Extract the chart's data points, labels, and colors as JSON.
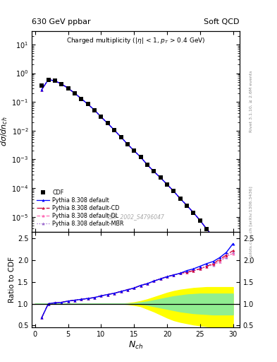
{
  "title_left": "630 GeV ppbar",
  "title_right": "Soft QCD",
  "watermark": "CDF_2002_S4796047",
  "ylim_main": [
    3e-06,
    30
  ],
  "xlim": [
    -0.5,
    31
  ],
  "ylim_ratio": [
    0.45,
    2.65
  ],
  "yticks_ratio": [
    0.5,
    1.0,
    1.5,
    2.0,
    2.5
  ],
  "xticks": [
    0,
    5,
    10,
    15,
    20,
    25,
    30
  ],
  "cdf_nch": [
    1,
    2,
    3,
    4,
    5,
    6,
    7,
    8,
    9,
    10,
    11,
    12,
    13,
    14,
    15,
    16,
    17,
    18,
    19,
    20,
    21,
    22,
    23,
    24,
    25,
    26,
    27,
    28,
    29,
    30
  ],
  "cdf_vals": [
    0.38,
    0.6,
    0.54,
    0.42,
    0.3,
    0.2,
    0.13,
    0.083,
    0.052,
    0.03,
    0.018,
    0.0105,
    0.006,
    0.0034,
    0.002,
    0.0012,
    0.00065,
    0.00038,
    0.00023,
    0.000135,
    7.8e-05,
    4.3e-05,
    2.5e-05,
    1.4e-05,
    7.5e-06,
    3.8e-06,
    2e-06,
    1e-06,
    5e-07,
    3e-07
  ],
  "py_nch": [
    1,
    2,
    3,
    4,
    5,
    6,
    7,
    8,
    9,
    10,
    11,
    12,
    13,
    14,
    15,
    16,
    17,
    18,
    19,
    20,
    21,
    22,
    23,
    24,
    25,
    26,
    27,
    28,
    29,
    30
  ],
  "py_default_vals": [
    0.27,
    0.6,
    0.54,
    0.42,
    0.3,
    0.2,
    0.13,
    0.083,
    0.052,
    0.03,
    0.018,
    0.0105,
    0.006,
    0.0034,
    0.002,
    0.0012,
    0.00065,
    0.00038,
    0.00023,
    0.000135,
    7.8e-05,
    4.3e-05,
    2.5e-05,
    1.4e-05,
    7.5e-06,
    3.8e-06,
    2e-06,
    1e-06,
    5e-07,
    2.8e-07
  ],
  "py_cd_vals": [
    0.27,
    0.6,
    0.54,
    0.42,
    0.3,
    0.2,
    0.13,
    0.083,
    0.052,
    0.03,
    0.018,
    0.0105,
    0.006,
    0.0034,
    0.002,
    0.0012,
    0.00065,
    0.00038,
    0.00023,
    0.000135,
    7.8e-05,
    4.3e-05,
    2.5e-05,
    1.4e-05,
    7.5e-06,
    3.8e-06,
    2e-06,
    1e-06,
    5e-07,
    2.8e-07
  ],
  "py_dl_vals": [
    0.27,
    0.6,
    0.54,
    0.42,
    0.3,
    0.2,
    0.13,
    0.083,
    0.052,
    0.03,
    0.018,
    0.0105,
    0.006,
    0.0034,
    0.002,
    0.0012,
    0.00065,
    0.00038,
    0.00023,
    0.000135,
    7.8e-05,
    4.3e-05,
    2.5e-05,
    1.4e-05,
    7.5e-06,
    3.8e-06,
    2e-06,
    1e-06,
    5e-07,
    2.8e-07
  ],
  "py_mbr_vals": [
    0.27,
    0.6,
    0.54,
    0.42,
    0.3,
    0.2,
    0.13,
    0.083,
    0.052,
    0.03,
    0.018,
    0.0105,
    0.006,
    0.0034,
    0.002,
    0.0012,
    0.00065,
    0.00038,
    0.00023,
    0.000135,
    7.8e-05,
    4.3e-05,
    2.5e-05,
    1.4e-05,
    7.5e-06,
    3.8e-06,
    2e-06,
    1e-06,
    5e-07,
    2.8e-07
  ],
  "ratio_nch": [
    1,
    2,
    3,
    4,
    5,
    6,
    7,
    8,
    9,
    10,
    11,
    12,
    13,
    14,
    15,
    16,
    17,
    18,
    19,
    20,
    21,
    22,
    23,
    24,
    25,
    26,
    27,
    28,
    29,
    30
  ],
  "ratio_default": [
    0.68,
    1.0,
    1.02,
    1.03,
    1.06,
    1.08,
    1.1,
    1.12,
    1.14,
    1.18,
    1.21,
    1.24,
    1.28,
    1.32,
    1.36,
    1.42,
    1.46,
    1.52,
    1.57,
    1.62,
    1.66,
    1.7,
    1.76,
    1.8,
    1.86,
    1.92,
    1.97,
    2.06,
    2.18,
    2.38
  ],
  "ratio_cd": [
    0.68,
    1.0,
    1.02,
    1.03,
    1.06,
    1.08,
    1.1,
    1.12,
    1.14,
    1.18,
    1.21,
    1.24,
    1.28,
    1.32,
    1.36,
    1.42,
    1.46,
    1.52,
    1.57,
    1.62,
    1.66,
    1.7,
    1.72,
    1.76,
    1.8,
    1.86,
    1.92,
    2.02,
    2.12,
    2.22
  ],
  "ratio_dl": [
    0.68,
    1.0,
    1.02,
    1.03,
    1.06,
    1.08,
    1.1,
    1.12,
    1.14,
    1.18,
    1.21,
    1.24,
    1.28,
    1.32,
    1.36,
    1.42,
    1.46,
    1.52,
    1.57,
    1.62,
    1.66,
    1.7,
    1.72,
    1.76,
    1.8,
    1.86,
    1.9,
    1.97,
    2.1,
    2.15
  ],
  "ratio_mbr": [
    0.68,
    1.0,
    1.02,
    1.03,
    1.06,
    1.08,
    1.1,
    1.12,
    1.14,
    1.18,
    1.21,
    1.24,
    1.28,
    1.32,
    1.36,
    1.42,
    1.46,
    1.52,
    1.57,
    1.62,
    1.66,
    1.7,
    1.72,
    1.76,
    1.8,
    1.85,
    1.89,
    1.97,
    2.07,
    2.17
  ],
  "green_x": [
    0,
    1,
    2,
    3,
    4,
    5,
    6,
    7,
    8,
    9,
    10,
    11,
    12,
    13,
    14,
    15,
    16,
    17,
    18,
    19,
    20,
    21,
    22,
    23,
    24,
    25,
    26,
    27,
    28,
    29,
    30
  ],
  "green_lo": [
    1.0,
    1.0,
    1.0,
    1.0,
    1.0,
    1.0,
    1.0,
    1.0,
    1.0,
    1.0,
    1.0,
    1.0,
    1.0,
    1.0,
    1.0,
    1.0,
    0.99,
    0.97,
    0.94,
    0.91,
    0.88,
    0.85,
    0.82,
    0.8,
    0.78,
    0.77,
    0.76,
    0.75,
    0.75,
    0.75,
    0.75
  ],
  "green_hi": [
    1.0,
    1.0,
    1.0,
    1.0,
    1.0,
    1.0,
    1.0,
    1.0,
    1.0,
    1.0,
    1.0,
    1.0,
    1.0,
    1.0,
    1.0,
    1.01,
    1.03,
    1.05,
    1.08,
    1.11,
    1.14,
    1.17,
    1.19,
    1.21,
    1.22,
    1.23,
    1.23,
    1.23,
    1.23,
    1.23,
    1.23
  ],
  "yellow_x": [
    0,
    1,
    2,
    3,
    4,
    5,
    6,
    7,
    8,
    9,
    10,
    11,
    12,
    13,
    14,
    15,
    16,
    17,
    18,
    19,
    20,
    21,
    22,
    23,
    24,
    25,
    26,
    27,
    28,
    29,
    30
  ],
  "yellow_lo": [
    1.0,
    1.0,
    1.0,
    1.0,
    1.0,
    1.0,
    1.0,
    1.0,
    1.0,
    1.0,
    1.0,
    1.0,
    1.0,
    1.0,
    0.99,
    0.97,
    0.94,
    0.88,
    0.82,
    0.75,
    0.68,
    0.62,
    0.58,
    0.55,
    0.52,
    0.5,
    0.48,
    0.47,
    0.47,
    0.47,
    0.47
  ],
  "yellow_hi": [
    1.0,
    1.0,
    1.0,
    1.0,
    1.0,
    1.0,
    1.0,
    1.0,
    1.0,
    1.0,
    1.0,
    1.0,
    1.0,
    1.0,
    1.01,
    1.03,
    1.06,
    1.1,
    1.15,
    1.2,
    1.25,
    1.29,
    1.32,
    1.34,
    1.36,
    1.37,
    1.38,
    1.38,
    1.38,
    1.38,
    1.38
  ],
  "right_label1": "Rivet 3.1.10, ≥ 2.6M events",
  "right_label2": "mcplots.cern.ch [arXiv:1306.3436]"
}
